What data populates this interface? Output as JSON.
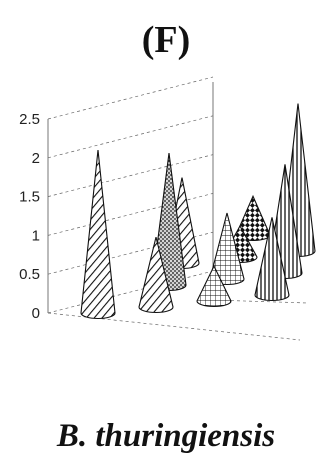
{
  "panel_label": "(F)",
  "caption": "B. thuringiensis",
  "chart_data": {
    "type": "3d-cone",
    "ylim": [
      0,
      2.5
    ],
    "y_ticks": [
      "0",
      "0.5",
      "1",
      "1.5",
      "2",
      "2.5"
    ],
    "grid": true,
    "cones": [
      {
        "row": 0,
        "col": 0,
        "value": 2.1,
        "pattern": "diag-lines"
      },
      {
        "row": 0,
        "col": 1,
        "value": 0.9,
        "pattern": "diag-lines"
      },
      {
        "row": 1,
        "col": 1,
        "value": 1.7,
        "pattern": "stipple"
      },
      {
        "row": 2,
        "col": 1,
        "value": 1.1,
        "pattern": "diag-lines"
      },
      {
        "row": 0,
        "col": 2,
        "value": 0.45,
        "pattern": "grid"
      },
      {
        "row": 1,
        "col": 2,
        "value": 0.85,
        "pattern": "grid"
      },
      {
        "row": 2,
        "col": 2,
        "value": 0.4,
        "pattern": "diamond"
      },
      {
        "row": 3,
        "col": 2,
        "value": 0.5,
        "pattern": "diamond"
      },
      {
        "row": 0,
        "col": 3,
        "value": 1.0,
        "pattern": "vertical-lines"
      },
      {
        "row": 1,
        "col": 3,
        "value": 1.4,
        "pattern": "vertical-lines"
      },
      {
        "row": 2,
        "col": 3,
        "value": 1.9,
        "pattern": "vertical-lines"
      }
    ]
  }
}
